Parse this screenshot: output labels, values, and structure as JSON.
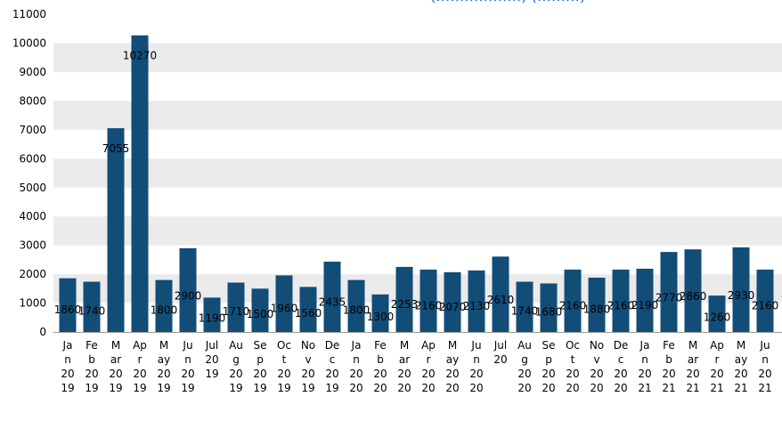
{
  "chart_data": {
    "type": "bar",
    "title": "",
    "xlabel": "",
    "ylabel": "",
    "ylim": [
      0,
      11000
    ],
    "yticks": [
      0,
      1000,
      2000,
      3000,
      4000,
      5000,
      6000,
      7000,
      8000,
      9000,
      10000,
      11000
    ],
    "grid": "alternating horizontal bands",
    "bar_color": "#124d78",
    "band_color": "#ebebeb",
    "categories": [
      [
        "Ja",
        "n",
        "20",
        "19"
      ],
      [
        "Fe",
        "b",
        "20",
        "19"
      ],
      [
        "M",
        "ar",
        "20",
        "19"
      ],
      [
        "Ap",
        "r",
        "20",
        "19"
      ],
      [
        "M",
        "ay",
        "20",
        "19"
      ],
      [
        "Ju",
        "n",
        "20",
        "19"
      ],
      [
        "Jul",
        "20",
        "19",
        ""
      ],
      [
        "Au",
        "g",
        "20",
        "19"
      ],
      [
        "Se",
        "p",
        "20",
        "19"
      ],
      [
        "Oc",
        "t",
        "20",
        "19"
      ],
      [
        "No",
        "v",
        "20",
        "19"
      ],
      [
        "De",
        "c",
        "20",
        "19"
      ],
      [
        "Ja",
        "n",
        "20",
        "20"
      ],
      [
        "Fe",
        "b",
        "20",
        "20"
      ],
      [
        "M",
        "ar",
        "20",
        "20"
      ],
      [
        "Ap",
        "r",
        "20",
        "20"
      ],
      [
        "M",
        "ay",
        "20",
        "20"
      ],
      [
        "Ju",
        "n",
        "20",
        "20"
      ],
      [
        "Jul",
        "20",
        "",
        ""
      ],
      [
        "Au",
        "g",
        "20",
        "20"
      ],
      [
        "Se",
        "p",
        "20",
        "20"
      ],
      [
        "Oc",
        "t",
        "20",
        "20"
      ],
      [
        "No",
        "v",
        "20",
        "20"
      ],
      [
        "De",
        "c",
        "20",
        "20"
      ],
      [
        "Ja",
        "n",
        "20",
        "21"
      ],
      [
        "Fe",
        "b",
        "20",
        "21"
      ],
      [
        "M",
        "ar",
        "20",
        "21"
      ],
      [
        "Ap",
        "r",
        "20",
        "21"
      ],
      [
        "M",
        "ay",
        "20",
        "21"
      ],
      [
        "Ju",
        "n",
        "20",
        "21"
      ]
    ],
    "values": [
      1860,
      1740,
      7055,
      10270,
      1800,
      2900,
      1190,
      1710,
      1500,
      1960,
      1560,
      2435,
      1800,
      1300,
      2253,
      2160,
      2070,
      2130,
      2610,
      1740,
      1680,
      2160,
      1880,
      2160,
      2190,
      2770,
      2860,
      1260,
      2930,
      2160
    ],
    "data_labels": [
      "1860",
      "1740",
      "7055",
      "10270",
      "1800",
      "2900",
      "1190",
      "1710",
      "1500",
      "1960",
      "1560",
      "2435",
      "1800",
      "1300",
      "2253",
      "2160",
      "2070",
      "2130",
      "2610",
      "1740",
      "1680",
      "2160",
      "1880",
      "2160",
      "2190",
      "2770",
      "2860",
      "1260",
      "2930",
      "2160"
    ]
  }
}
